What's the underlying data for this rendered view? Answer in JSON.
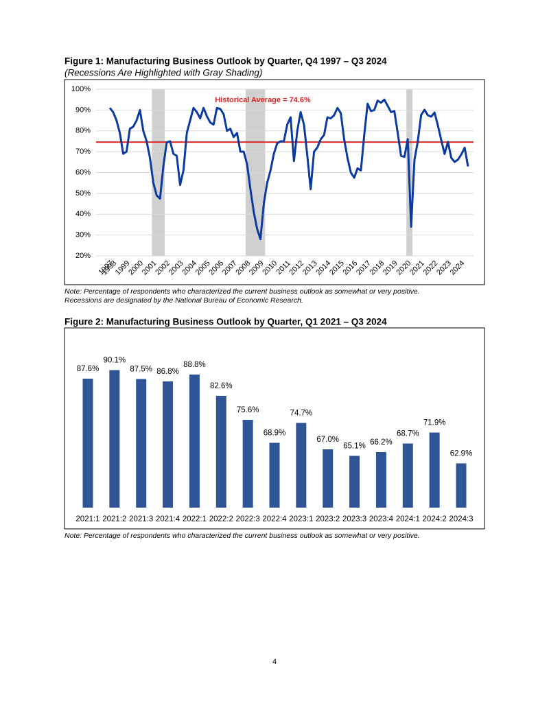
{
  "chart_data": [
    {
      "type": "line",
      "title": "Figure 1: Manufacturing Business Outlook by Quarter, Q4 1997 – Q3 2024",
      "subtitle": "(Recessions Are Highlighted with Gray Shading)",
      "categories": [
        "1997",
        "1998",
        null,
        null,
        null,
        "1999",
        null,
        null,
        null,
        "2000",
        null,
        null,
        null,
        "2001",
        null,
        null,
        null,
        "2002",
        null,
        null,
        null,
        "2003",
        null,
        null,
        null,
        "2004",
        null,
        null,
        null,
        "2005",
        null,
        null,
        null,
        "2006",
        null,
        null,
        null,
        "2007",
        null,
        null,
        null,
        "2008",
        null,
        null,
        null,
        "2009",
        null,
        null,
        null,
        "2010",
        null,
        null,
        null,
        "2011",
        null,
        null,
        null,
        "2012",
        null,
        null,
        null,
        "2013",
        null,
        null,
        null,
        "2014",
        null,
        null,
        null,
        "2015",
        null,
        null,
        null,
        "2016",
        null,
        null,
        null,
        "2017",
        null,
        null,
        null,
        "2018",
        null,
        null,
        null,
        "2019",
        null,
        null,
        null,
        "2020",
        null,
        null,
        null,
        "2021",
        null,
        null,
        null,
        "2022",
        null,
        null,
        null,
        "2023",
        null,
        null,
        null,
        "2024",
        null,
        null
      ],
      "values": [
        91,
        89,
        85,
        79,
        69,
        70,
        81,
        82,
        85,
        90,
        80,
        75,
        67,
        55,
        49,
        47.5,
        63,
        74.5,
        75,
        69,
        68,
        54,
        61,
        79,
        85,
        91,
        89,
        86,
        91,
        87,
        84,
        83,
        91,
        90.5,
        88,
        80,
        81,
        77,
        79,
        70,
        70,
        64,
        52,
        41,
        33,
        28,
        45,
        55,
        61,
        69,
        74,
        75,
        75,
        83,
        86.5,
        65.5,
        80,
        89,
        83,
        68,
        52,
        70,
        72,
        76,
        78,
        86.5,
        86,
        87.5,
        91,
        88.5,
        76,
        67,
        60,
        57.5,
        62,
        61,
        78,
        93,
        89.5,
        90,
        94.5,
        93.5,
        95,
        92,
        89,
        89.5,
        79,
        68,
        67.5,
        76,
        34,
        66,
        75,
        87.6,
        90.1,
        87.5,
        86.8,
        88.8,
        82.6,
        75.6,
        68.9,
        74.7,
        67.0,
        65.1,
        66.2,
        68.7,
        71.9,
        62.9
      ],
      "color": "#0b3aa0",
      "ylim": [
        20,
        100
      ],
      "yticks": [
        {
          "value": 20,
          "label": "20%"
        },
        {
          "value": 30,
          "label": "30%"
        },
        {
          "value": 40,
          "label": "40%"
        },
        {
          "value": 50,
          "label": "50%"
        },
        {
          "value": 60,
          "label": "60%"
        },
        {
          "value": 70,
          "label": "70%"
        },
        {
          "value": 80,
          "label": "80%"
        },
        {
          "value": 90,
          "label": "90%"
        },
        {
          "value": 100,
          "label": "100%"
        }
      ],
      "grid": true,
      "shaded_ranges": [
        [
          13,
          16
        ],
        [
          41,
          46
        ],
        [
          89,
          90
        ]
      ],
      "shade_color": "#d0d0d0",
      "reference_line": {
        "value": 74.6,
        "label": "Historical Average = 74.6%",
        "color": "#e02424"
      }
    },
    {
      "type": "bar",
      "title": "Figure 2: Manufacturing Business Outlook by Quarter, Q1 2021 – Q3 2024",
      "categories": [
        "2021:1",
        "2021:2",
        "2021:3",
        "2021:4",
        "2022:1",
        "2022:2",
        "2022:3",
        "2022:4",
        "2023:1",
        "2023:2",
        "2023:3",
        "2023:4",
        "2024:1",
        "2024:2",
        "2024:3"
      ],
      "values": [
        87.6,
        90.1,
        87.5,
        86.8,
        88.8,
        82.6,
        75.6,
        68.9,
        74.7,
        67.0,
        65.1,
        66.2,
        68.7,
        71.9,
        62.9
      ],
      "value_labels": [
        "87.6%",
        "90.1%",
        "87.5%",
        "86.8%",
        "88.8%",
        "82.6%",
        "75.6%",
        "68.9%",
        "74.7%",
        "67.0%",
        "65.1%",
        "66.2%",
        "68.7%",
        "71.9%",
        "62.9%"
      ],
      "color": "#2f5597",
      "ylim": [
        50,
        100
      ]
    }
  ],
  "notes": [
    [
      "Note: Percentage of respondents who characterized the current business outlook as somewhat or very positive.",
      "Recessions are designated by the National Bureau of Economic Research."
    ],
    [
      "Note: Percentage of respondents who characterized the current business outlook as somewhat or very positive."
    ]
  ],
  "page_number": "4"
}
